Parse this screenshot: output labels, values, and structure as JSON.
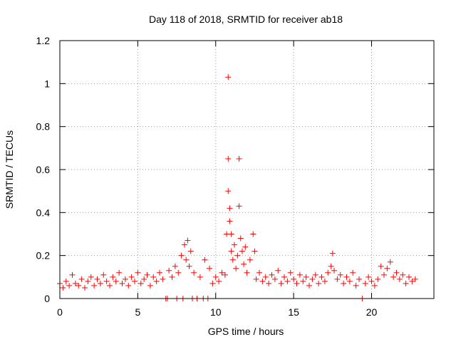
{
  "chart_data": {
    "type": "scatter",
    "title": "Day 118 of 2018, SRMTID for receiver ab18",
    "xlabel": "GPS time / hours",
    "ylabel": "SRMTID / TECUs",
    "xlim": [
      0,
      24
    ],
    "ylim": [
      0,
      1.2
    ],
    "xticks": [
      0,
      5,
      10,
      15,
      20
    ],
    "xtick_labels": [
      "0",
      "5",
      "10",
      "15",
      "20"
    ],
    "yticks": [
      0,
      0.2,
      0.4,
      0.6,
      0.8,
      1.0,
      1.2
    ],
    "ytick_labels": [
      "0",
      "0.2",
      "0.4",
      "0.6",
      "0.8",
      "1",
      "1.2"
    ],
    "grid": true,
    "marker": "+",
    "series": [
      {
        "name": "SRMTID",
        "color": "#ff0000",
        "points": [
          [
            0.0,
            0.07
          ],
          [
            0.2,
            0.05
          ],
          [
            0.4,
            0.08
          ],
          [
            0.6,
            0.06
          ],
          [
            0.8,
            0.11
          ],
          [
            1.0,
            0.07
          ],
          [
            1.2,
            0.06
          ],
          [
            1.4,
            0.09
          ],
          [
            1.6,
            0.05
          ],
          [
            1.8,
            0.08
          ],
          [
            2.0,
            0.1
          ],
          [
            2.2,
            0.06
          ],
          [
            2.4,
            0.09
          ],
          [
            2.6,
            0.07
          ],
          [
            2.8,
            0.11
          ],
          [
            3.0,
            0.08
          ],
          [
            3.2,
            0.06
          ],
          [
            3.4,
            0.1
          ],
          [
            3.6,
            0.08
          ],
          [
            3.8,
            0.12
          ],
          [
            4.0,
            0.07
          ],
          [
            4.2,
            0.09
          ],
          [
            4.4,
            0.06
          ],
          [
            4.6,
            0.1
          ],
          [
            4.8,
            0.08
          ],
          [
            5.0,
            0.12
          ],
          [
            5.2,
            0.07
          ],
          [
            5.4,
            0.09
          ],
          [
            5.6,
            0.11
          ],
          [
            5.8,
            0.06
          ],
          [
            6.0,
            0.1
          ],
          [
            6.2,
            0.08
          ],
          [
            6.4,
            0.12
          ],
          [
            6.6,
            0.09
          ],
          [
            6.8,
            0.0
          ],
          [
            6.9,
            0.0
          ],
          [
            7.0,
            0.13
          ],
          [
            7.2,
            0.1
          ],
          [
            7.4,
            0.15
          ],
          [
            7.5,
            0.0
          ],
          [
            7.6,
            0.12
          ],
          [
            7.8,
            0.2
          ],
          [
            7.9,
            0.0
          ],
          [
            8.0,
            0.25
          ],
          [
            8.1,
            0.18
          ],
          [
            8.2,
            0.27
          ],
          [
            8.3,
            0.15
          ],
          [
            8.4,
            0.22
          ],
          [
            8.5,
            0.0
          ],
          [
            8.6,
            0.12
          ],
          [
            8.8,
            0.0
          ],
          [
            9.0,
            0.1
          ],
          [
            9.2,
            0.0
          ],
          [
            9.3,
            0.18
          ],
          [
            9.5,
            0.0
          ],
          [
            9.6,
            0.14
          ],
          [
            9.8,
            0.07
          ],
          [
            10.0,
            0.1
          ],
          [
            10.2,
            0.08
          ],
          [
            10.4,
            0.12
          ],
          [
            10.6,
            0.11
          ],
          [
            10.7,
            0.3
          ],
          [
            10.8,
            1.03
          ],
          [
            10.8,
            0.65
          ],
          [
            10.8,
            0.5
          ],
          [
            10.9,
            0.42
          ],
          [
            10.9,
            0.36
          ],
          [
            11.0,
            0.3
          ],
          [
            11.0,
            0.22
          ],
          [
            11.1,
            0.18
          ],
          [
            11.2,
            0.25
          ],
          [
            11.3,
            0.14
          ],
          [
            11.4,
            0.2
          ],
          [
            11.5,
            0.65
          ],
          [
            11.5,
            0.43
          ],
          [
            11.6,
            0.28
          ],
          [
            11.7,
            0.22
          ],
          [
            11.8,
            0.16
          ],
          [
            11.9,
            0.24
          ],
          [
            12.0,
            0.12
          ],
          [
            12.2,
            0.18
          ],
          [
            12.4,
            0.3
          ],
          [
            12.5,
            0.22
          ],
          [
            12.6,
            0.09
          ],
          [
            12.8,
            0.12
          ],
          [
            13.0,
            0.08
          ],
          [
            13.2,
            0.1
          ],
          [
            13.4,
            0.07
          ],
          [
            13.6,
            0.11
          ],
          [
            13.8,
            0.09
          ],
          [
            14.0,
            0.13
          ],
          [
            14.2,
            0.07
          ],
          [
            14.4,
            0.1
          ],
          [
            14.6,
            0.08
          ],
          [
            14.8,
            0.12
          ],
          [
            15.0,
            0.09
          ],
          [
            15.2,
            0.07
          ],
          [
            15.4,
            0.11
          ],
          [
            15.6,
            0.08
          ],
          [
            15.8,
            0.1
          ],
          [
            16.0,
            0.06
          ],
          [
            16.2,
            0.09
          ],
          [
            16.4,
            0.11
          ],
          [
            16.6,
            0.07
          ],
          [
            16.8,
            0.1
          ],
          [
            17.0,
            0.08
          ],
          [
            17.2,
            0.12
          ],
          [
            17.4,
            0.15
          ],
          [
            17.5,
            0.21
          ],
          [
            17.6,
            0.13
          ],
          [
            17.8,
            0.09
          ],
          [
            18.0,
            0.11
          ],
          [
            18.2,
            0.07
          ],
          [
            18.4,
            0.1
          ],
          [
            18.6,
            0.08
          ],
          [
            18.8,
            0.12
          ],
          [
            19.0,
            0.06
          ],
          [
            19.2,
            0.09
          ],
          [
            19.4,
            0.0
          ],
          [
            19.6,
            0.07
          ],
          [
            19.8,
            0.1
          ],
          [
            20.0,
            0.08
          ],
          [
            20.2,
            0.06
          ],
          [
            20.4,
            0.09
          ],
          [
            20.6,
            0.15
          ],
          [
            20.8,
            0.11
          ],
          [
            21.0,
            0.14
          ],
          [
            21.2,
            0.17
          ],
          [
            21.4,
            0.1
          ],
          [
            21.6,
            0.12
          ],
          [
            21.8,
            0.09
          ],
          [
            22.0,
            0.11
          ],
          [
            22.2,
            0.07
          ],
          [
            22.4,
            0.1
          ],
          [
            22.6,
            0.08
          ],
          [
            22.8,
            0.09
          ]
        ]
      }
    ]
  }
}
